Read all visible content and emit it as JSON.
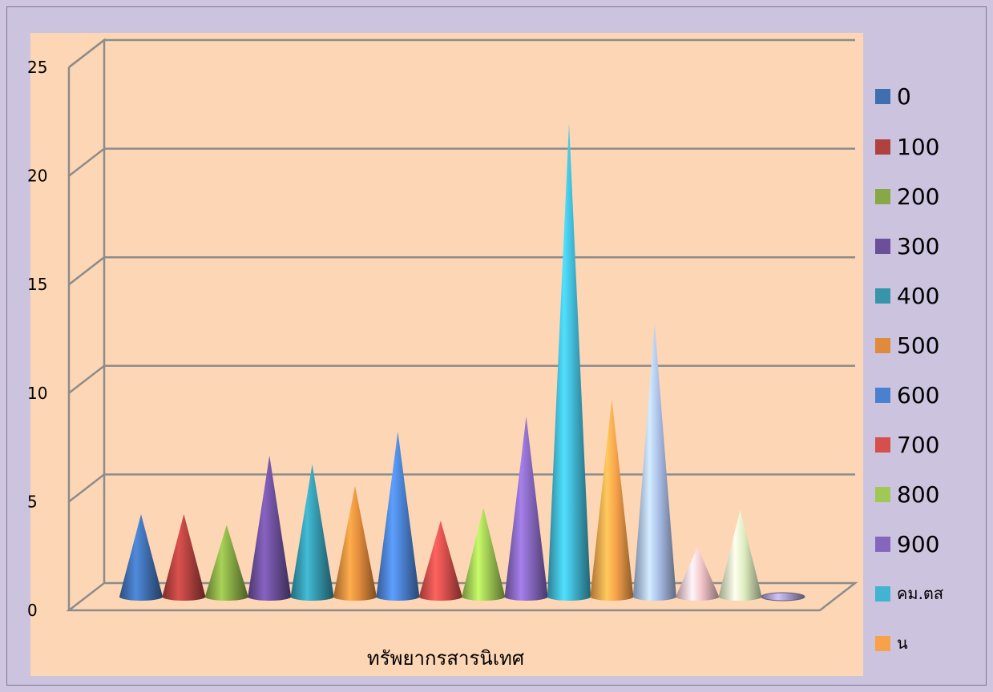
{
  "chart_data": {
    "type": "bar",
    "bar_shape": "cone",
    "xlabel": "ทรัพยากรสารนิเทศ",
    "ylabel": "",
    "ylim": [
      0,
      25
    ],
    "yticks": [
      "0",
      "5",
      "10",
      "15",
      "20",
      "25"
    ],
    "grid": true,
    "legend_position": "right",
    "series": [
      {
        "name": "0",
        "value": 3.8,
        "color": "#3f6fb0"
      },
      {
        "name": "100",
        "value": 3.8,
        "color": "#b0413e"
      },
      {
        "name": "200",
        "value": 3.3,
        "color": "#86a845"
      },
      {
        "name": "300",
        "value": 6.5,
        "color": "#6c4f9a"
      },
      {
        "name": "400",
        "value": 6.1,
        "color": "#3596ab"
      },
      {
        "name": "500",
        "value": 5.1,
        "color": "#e08a3c"
      },
      {
        "name": "600",
        "value": 7.6,
        "color": "#4a80d0"
      },
      {
        "name": "700",
        "value": 3.5,
        "color": "#d54f4c"
      },
      {
        "name": "800",
        "value": 4.1,
        "color": "#9fc954"
      },
      {
        "name": "900",
        "value": 8.3,
        "color": "#8566bd"
      },
      {
        "name": "คม.ตส",
        "value": 21.8,
        "color": "#40b4d0"
      },
      {
        "name": "น",
        "value": 9.1,
        "color": "#f7a14a"
      },
      {
        "name": "",
        "value": 12.6,
        "color": "#a9bde6"
      },
      {
        "name": "",
        "value": 2.3,
        "color": "#f2c4c8"
      },
      {
        "name": "",
        "value": 4.0,
        "color": "#dcebbf"
      },
      {
        "name": "",
        "value": 0,
        "color": "#a79cc8"
      }
    ]
  }
}
